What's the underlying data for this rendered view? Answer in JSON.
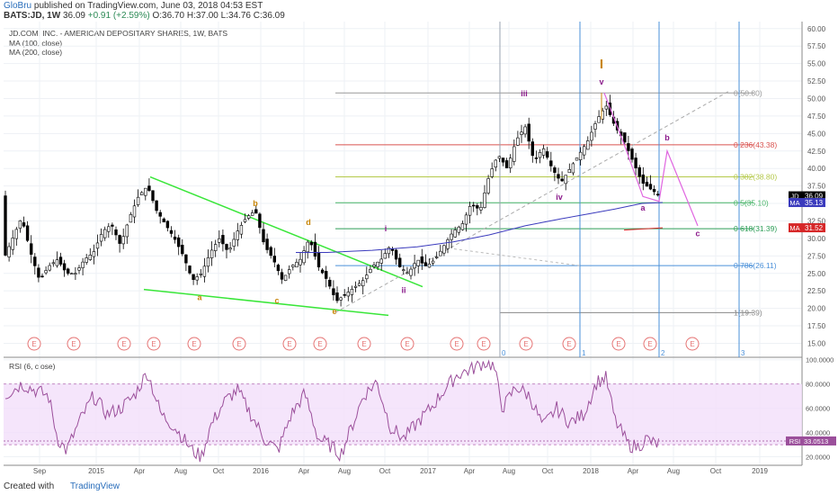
{
  "header": {
    "author": "GloBru",
    "published_text": "published on TradingView.com, June 03, 2018 04:53 EST",
    "symbol": "BATS:JD, 1W",
    "last": "36.09",
    "change": "+0.91 (+2.59%)",
    "ohlc": "O:36.70 H:37.00 L:34.76 C:36.09"
  },
  "legend": {
    "title": "JD.COM, INC. - AMERICAN DEPOSITARY SHARES, 1W, BATS",
    "ma100": "MA (100, close)",
    "ma200": "MA (200, close)"
  },
  "rsi_label": "RSI (6, close)",
  "footer": {
    "created": "Created with",
    "brand": "TradingView"
  },
  "colors": {
    "up": "#ffffff",
    "down": "#000000",
    "ma": "#3b3bbd",
    "ma200": "#d62728",
    "trend": "#39e639",
    "rsi": "#9b4f9b",
    "rsi_band": "#f3defa",
    "orange": "#c8860a",
    "purple": "#8b1a8b",
    "fib_blue": "#4a90d9"
  },
  "chart_data": [
    {
      "type": "candlestick",
      "title": "JD.COM, INC. - AMERICAN DEPOSITARY SHARES, 1W, BATS",
      "ylim": [
        13,
        61
      ],
      "y_ticks": [
        "60.00",
        "57.50",
        "55.00",
        "52.50",
        "50.00",
        "47.50",
        "45.00",
        "42.50",
        "40.00",
        "37.50",
        "35.00",
        "32.50",
        "30.00",
        "27.50",
        "25.00",
        "22.50",
        "20.00",
        "17.50",
        "15.00"
      ],
      "x_ticks": [
        "Sep",
        "2015",
        "Apr",
        "Aug",
        "Oct",
        "2016",
        "Apr",
        "Aug",
        "Oct",
        "2017",
        "Apr",
        "Aug",
        "Oct",
        "2018",
        "Apr",
        "Aug",
        "Oct",
        "2019"
      ],
      "price_path": [
        [
          0,
          27
        ],
        [
          10,
          30
        ],
        [
          20,
          33
        ],
        [
          30,
          28
        ],
        [
          40,
          24
        ],
        [
          50,
          26
        ],
        [
          60,
          27
        ],
        [
          70,
          25
        ],
        [
          80,
          25
        ],
        [
          90,
          27
        ],
        [
          100,
          28
        ],
        [
          110,
          31
        ],
        [
          120,
          32
        ],
        [
          130,
          29
        ],
        [
          140,
          33
        ],
        [
          150,
          36
        ],
        [
          160,
          37.5
        ],
        [
          170,
          34
        ],
        [
          180,
          32
        ],
        [
          190,
          30
        ],
        [
          200,
          27.5
        ],
        [
          210,
          24
        ],
        [
          220,
          25
        ],
        [
          230,
          28
        ],
        [
          240,
          30
        ],
        [
          250,
          28
        ],
        [
          260,
          31
        ],
        [
          270,
          33
        ],
        [
          280,
          34
        ],
        [
          290,
          29
        ],
        [
          300,
          27
        ],
        [
          310,
          24
        ],
        [
          320,
          26
        ],
        [
          330,
          27
        ],
        [
          340,
          30
        ],
        [
          350,
          26
        ],
        [
          360,
          24
        ],
        [
          370,
          21
        ],
        [
          380,
          22
        ],
        [
          390,
          23
        ],
        [
          400,
          24
        ],
        [
          410,
          26
        ],
        [
          420,
          27
        ],
        [
          430,
          29
        ],
        [
          440,
          26
        ],
        [
          450,
          25
        ],
        [
          460,
          27
        ],
        [
          470,
          26
        ],
        [
          480,
          27
        ],
        [
          490,
          29
        ],
        [
          500,
          31
        ],
        [
          510,
          32
        ],
        [
          520,
          35
        ],
        [
          530,
          34
        ],
        [
          540,
          39
        ],
        [
          550,
          42
        ],
        [
          560,
          40
        ],
        [
          570,
          44
        ],
        [
          580,
          46
        ],
        [
          590,
          41
        ],
        [
          600,
          43
        ],
        [
          610,
          40
        ],
        [
          620,
          38
        ],
        [
          630,
          40
        ],
        [
          640,
          42
        ],
        [
          650,
          44
        ],
        [
          660,
          47
        ],
        [
          670,
          49
        ],
        [
          680,
          46
        ],
        [
          690,
          44
        ],
        [
          700,
          41
        ],
        [
          710,
          38
        ],
        [
          720,
          37
        ],
        [
          730,
          36.1
        ]
      ],
      "ma100_path": [
        [
          325,
          28
        ],
        [
          360,
          28
        ],
        [
          410,
          28.3
        ],
        [
          460,
          28.8
        ],
        [
          500,
          29.5
        ],
        [
          540,
          30.5
        ],
        [
          580,
          31.8
        ],
        [
          620,
          32.8
        ],
        [
          650,
          33.5
        ],
        [
          680,
          34.2
        ],
        [
          710,
          35
        ],
        [
          733,
          35.13
        ]
      ],
      "ma200_path": [
        [
          690,
          31.2
        ],
        [
          733,
          31.52
        ]
      ],
      "fib_levels": [
        {
          "label": "0(50.80)",
          "value": 50.8
        },
        {
          "label": "0.236(43.38)",
          "value": 43.38
        },
        {
          "label": "0.382(38.80)",
          "value": 38.8
        },
        {
          "label": "0.5(35.10)",
          "value": 35.1
        },
        {
          "label": "0.618(31.39)",
          "value": 31.39
        },
        {
          "label": "0.786(26.11)",
          "value": 26.11
        },
        {
          "label": "1(19.39)",
          "value": 19.39
        }
      ],
      "fib_time_labels": [
        "0",
        "1",
        "2",
        "3"
      ],
      "wave_labels": [
        {
          "text": "a",
          "x": 222,
          "y": 21.2,
          "color": "orange"
        },
        {
          "text": "b",
          "x": 284,
          "y": 34.6,
          "color": "orange"
        },
        {
          "text": "c",
          "x": 308,
          "y": 20.7,
          "color": "orange"
        },
        {
          "text": "d",
          "x": 343,
          "y": 31.9,
          "color": "orange"
        },
        {
          "text": "e",
          "x": 372,
          "y": 19.2,
          "color": "orange"
        },
        {
          "text": "i",
          "x": 429,
          "y": 31,
          "color": "purple"
        },
        {
          "text": "ii",
          "x": 449,
          "y": 22.2,
          "color": "purple"
        },
        {
          "text": "iii",
          "x": 583,
          "y": 50.3,
          "color": "purple"
        },
        {
          "text": "iv",
          "x": 622,
          "y": 35.5,
          "color": "purple"
        },
        {
          "text": "v",
          "x": 669,
          "y": 52,
          "color": "purple"
        },
        {
          "text": "I",
          "x": 669,
          "y": 54.3,
          "color": "orange"
        },
        {
          "text": "a",
          "x": 715,
          "y": 34,
          "color": "purple"
        },
        {
          "text": "b",
          "x": 742,
          "y": 44,
          "color": "purple"
        },
        {
          "text": "c",
          "x": 776,
          "y": 30.3,
          "color": "purple"
        }
      ],
      "earnings_markers": [
        "E",
        "E",
        "E",
        "E",
        "E",
        "E",
        "E",
        "E",
        "E",
        "E",
        "E",
        "E",
        "E",
        "E",
        "E",
        "E",
        "E",
        "E",
        "E"
      ],
      "price_tags": [
        {
          "label": "JD",
          "value": "36.09"
        },
        {
          "label": "MA",
          "value": "35.13"
        },
        {
          "label": "MA",
          "value": "31.52"
        }
      ]
    },
    {
      "type": "line",
      "title": "RSI (6, close)",
      "ylim": [
        13,
        102
      ],
      "y_ticks": [
        "100.0000",
        "80.0000",
        "60.0000",
        "40.0000",
        "20.0000"
      ],
      "band": [
        30,
        80
      ],
      "rsi_path": [
        [
          0,
          70
        ],
        [
          10,
          75
        ],
        [
          20,
          80
        ],
        [
          35,
          75
        ],
        [
          50,
          70
        ],
        [
          60,
          35
        ],
        [
          70,
          25
        ],
        [
          85,
          50
        ],
        [
          100,
          70
        ],
        [
          115,
          55
        ],
        [
          130,
          60
        ],
        [
          145,
          70
        ],
        [
          160,
          90
        ],
        [
          175,
          55
        ],
        [
          190,
          45
        ],
        [
          200,
          35
        ],
        [
          210,
          25
        ],
        [
          220,
          20
        ],
        [
          230,
          45
        ],
        [
          245,
          65
        ],
        [
          260,
          75
        ],
        [
          275,
          55
        ],
        [
          290,
          35
        ],
        [
          305,
          25
        ],
        [
          320,
          55
        ],
        [
          335,
          72
        ],
        [
          350,
          35
        ],
        [
          362,
          30
        ],
        [
          375,
          22
        ],
        [
          390,
          50
        ],
        [
          400,
          70
        ],
        [
          415,
          82
        ],
        [
          430,
          45
        ],
        [
          445,
          35
        ],
        [
          460,
          48
        ],
        [
          475,
          60
        ],
        [
          490,
          75
        ],
        [
          505,
          88
        ],
        [
          520,
          92
        ],
        [
          535,
          98
        ],
        [
          545,
          95
        ],
        [
          555,
          60
        ],
        [
          570,
          78
        ],
        [
          585,
          70
        ],
        [
          600,
          45
        ],
        [
          615,
          60
        ],
        [
          630,
          48
        ],
        [
          645,
          55
        ],
        [
          660,
          82
        ],
        [
          670,
          85
        ],
        [
          680,
          50
        ],
        [
          695,
          30
        ],
        [
          705,
          28
        ],
        [
          715,
          35
        ],
        [
          725,
          30
        ],
        [
          733,
          33.05
        ]
      ],
      "value_tag": {
        "label": "RSI",
        "value": "33.0513"
      }
    }
  ]
}
